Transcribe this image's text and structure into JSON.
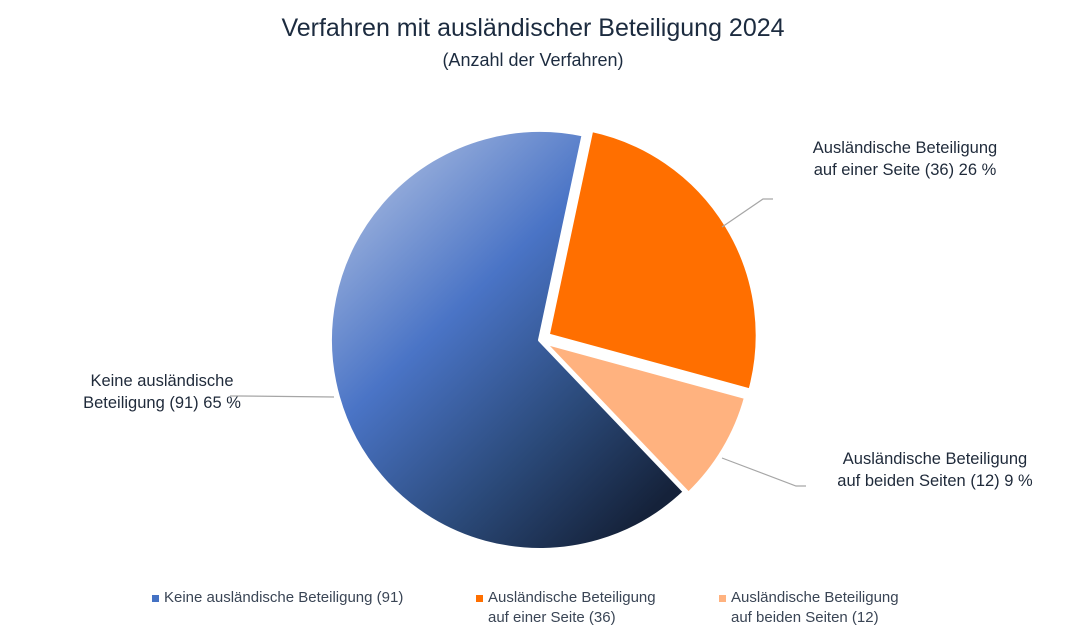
{
  "chart_data": {
    "type": "pie",
    "title": "Verfahren mit ausländischer Beteiligung 2024",
    "subtitle": "(Anzahl der Verfahren)",
    "slices": [
      {
        "name": "Ausländische Beteiligung auf einer Seite",
        "value": 36,
        "percent": 26,
        "color": "#ff6f00",
        "label_lines": [
          "Ausländische Beteiligung",
          "auf einer Seite (36) 26 %"
        ],
        "legend_lines": [
          "Ausländische Beteiligung",
          "auf einer Seite (36)"
        ]
      },
      {
        "name": "Ausländische Beteiligung auf beiden Seiten",
        "value": 12,
        "percent": 9,
        "color": "#ffb27f",
        "label_lines": [
          "Ausländische Beteiligung",
          "auf beiden Seiten (12) 9 %"
        ],
        "legend_lines": [
          "Ausländische Beteiligung",
          "auf beiden Seiten (12)"
        ]
      },
      {
        "name": "Keine ausländische Beteiligung",
        "value": 91,
        "percent": 65,
        "color": "#4472c4",
        "label_lines": [
          "Keine ausländische",
          "Beteiligung (91) 65 %"
        ],
        "legend_lines": [
          "Keine ausländische Beteiligung (91)"
        ]
      }
    ],
    "legend_position": "bottom"
  }
}
